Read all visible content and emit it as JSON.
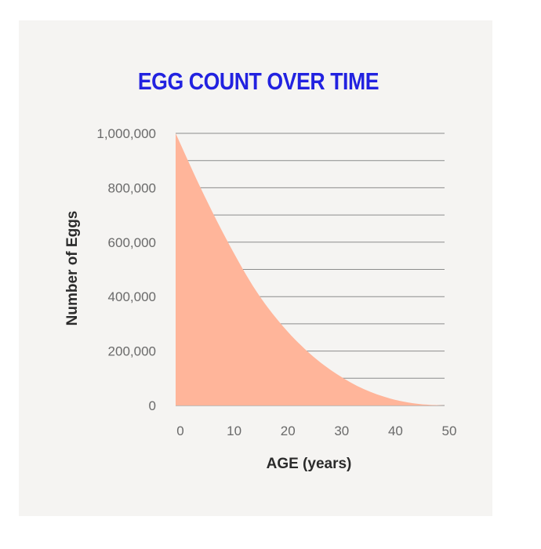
{
  "chart_data": {
    "type": "area",
    "title": "EGG COUNT OVER TIME",
    "xlabel": "AGE (years)",
    "ylabel": "Number of Eggs",
    "x": [
      0,
      5,
      10,
      15,
      20,
      25,
      30,
      35,
      40,
      45,
      50
    ],
    "series": [
      {
        "values": [
          1000000,
          785000,
          590000,
          420000,
          290000,
          190000,
          115000,
          60000,
          25000,
          6000,
          0
        ],
        "color": "#ffb59a"
      }
    ],
    "xlim": [
      0,
      50
    ],
    "ylim": [
      0,
      1000000
    ],
    "xticks": [
      0,
      10,
      20,
      30,
      40,
      50
    ],
    "xtick_labels": [
      "0",
      "10",
      "20",
      "30",
      "40",
      "50"
    ],
    "yticks": [
      0,
      200000,
      400000,
      600000,
      800000,
      1000000
    ],
    "ytick_labels": [
      "0",
      "200,000",
      "400,000",
      "600,000",
      "800,000",
      "1,000,000"
    ],
    "grid": true,
    "colors": {
      "title": "#2222e0",
      "fill": "#ffb59a",
      "grid": "#8c8c8c",
      "background": "#f5f4f2"
    }
  }
}
